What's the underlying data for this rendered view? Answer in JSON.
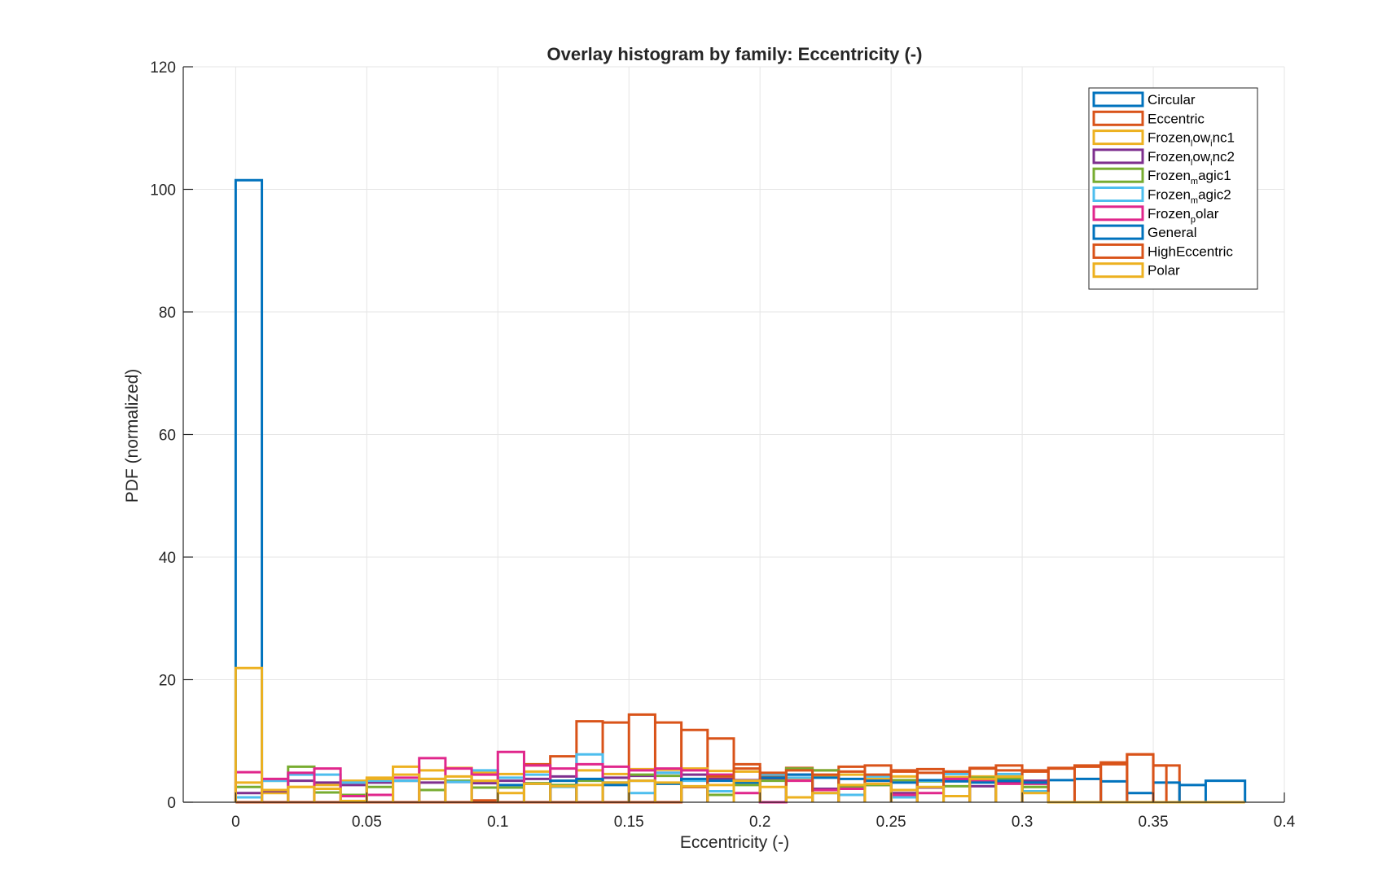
{
  "chart_data": {
    "type": "histogram",
    "title": "Overlay histogram by family: Eccentricity (-)",
    "xlabel": "Eccentricity (-)",
    "ylabel": "PDF (normalized)",
    "xlim": [
      -0.02,
      0.4
    ],
    "ylim": [
      0,
      120
    ],
    "xticks": [
      0,
      0.05,
      0.1,
      0.15,
      0.2,
      0.25,
      0.3,
      0.35,
      0.4
    ],
    "xtick_labels": [
      "0",
      "0.05",
      "0.1",
      "0.15",
      "0.2",
      "0.25",
      "0.3",
      "0.35",
      "0.4"
    ],
    "yticks": [
      0,
      20,
      40,
      60,
      80,
      100,
      120
    ],
    "ytick_labels": [
      "0",
      "20",
      "40",
      "60",
      "80",
      "100",
      "120"
    ],
    "grid": true,
    "legend_position": "top-right",
    "display_style": "stairs",
    "series": [
      {
        "name": "Circular",
        "color": "#0072BD",
        "edges": [
          0,
          0.01
        ],
        "values": [
          101.5
        ]
      },
      {
        "name": "Eccentric",
        "color": "#D95319",
        "edges": [
          0.0,
          0.09,
          0.1,
          0.11,
          0.12,
          0.13,
          0.14,
          0.15,
          0.16,
          0.17,
          0.18,
          0.19,
          0.2,
          0.21,
          0.22,
          0.23,
          0.24,
          0.25,
          0.26,
          0.27,
          0.28,
          0.29,
          0.3,
          0.31,
          0.32,
          0.33,
          0.34,
          0.35,
          0.36
        ],
        "values": [
          0,
          0.3,
          0,
          6.2,
          7.5,
          13.2,
          13,
          14.3,
          13,
          11.8,
          10.4,
          6.2,
          4.2,
          5.6,
          5.2,
          5.8,
          6,
          5,
          5.4,
          5,
          5.6,
          6,
          5.2,
          5.6,
          6,
          6.5,
          7.8,
          6
        ]
      },
      {
        "name": "Frozen_lowinc1",
        "color": "#EDB120",
        "edges": [
          0,
          0.01,
          0.02,
          0.03,
          0.04,
          0.05,
          0.06,
          0.07,
          0.08,
          0.09,
          0.1,
          0.11,
          0.12,
          0.13,
          0.14,
          0.15,
          0.16,
          0.17,
          0.18,
          0.19,
          0.2,
          0.21,
          0.22,
          0.23,
          0.24,
          0.25,
          0.26,
          0.27,
          0.28,
          0.29,
          0.3,
          0.31
        ],
        "values": [
          3.2,
          1.5,
          2.5,
          2.8,
          3.5,
          4,
          5.8,
          5.2,
          5.6,
          4.8,
          4.6,
          5,
          3.5,
          5.2,
          4.6,
          5.4,
          5.3,
          5.5,
          5.1,
          5,
          4,
          3.8,
          4.2,
          4.5,
          3.8,
          4.2,
          3.5,
          4.1,
          4.2,
          3.9,
          2.5
        ]
      },
      {
        "name": "Frozen_lowinc2",
        "color": "#7E2F8E",
        "edges": [
          0,
          0.01,
          0.02,
          0.03,
          0.04,
          0.05,
          0.06,
          0.07,
          0.08,
          0.09,
          0.1,
          0.11,
          0.12,
          0.13,
          0.14,
          0.15,
          0.16,
          0.17,
          0.18,
          0.19,
          0.2,
          0.21,
          0.22,
          0.23,
          0.24,
          0.25,
          0.26,
          0.27,
          0.28,
          0.29,
          0.3,
          0.31
        ],
        "values": [
          1.5,
          1.8,
          3.5,
          3.2,
          2.8,
          3.2,
          3.5,
          3.2,
          3.3,
          3.1,
          3.5,
          3.8,
          4.2,
          3.6,
          4,
          4.3,
          4.8,
          4.5,
          3.8,
          3.6,
          3.9,
          4.5,
          2.2,
          2.5,
          2.8,
          1.5,
          2.4,
          3.5,
          2.6,
          3.2,
          3.5
        ]
      },
      {
        "name": "Frozen_magic1",
        "color": "#77AC30",
        "edges": [
          0,
          0.01,
          0.02,
          0.03,
          0.04,
          0.05,
          0.06,
          0.07,
          0.08,
          0.09,
          0.1,
          0.11,
          0.12,
          0.13,
          0.14,
          0.15,
          0.16,
          0.17,
          0.18,
          0.19,
          0.2,
          0.21,
          0.22,
          0.23,
          0.24,
          0.25,
          0.26,
          0.27,
          0.28,
          0.29,
          0.3,
          0.31
        ],
        "values": [
          2.5,
          3.5,
          5.8,
          1.6,
          1.2,
          2.5,
          3.5,
          2,
          3.5,
          2.4,
          2.4,
          3.1,
          2.8,
          3.5,
          3.2,
          4.5,
          4.3,
          2.5,
          1.2,
          2.8,
          3.5,
          5.5,
          5.2,
          2.4,
          2.8,
          3.6,
          3.4,
          2.6,
          4,
          3.8,
          2.5
        ]
      },
      {
        "name": "Frozen_magic2",
        "color": "#4DBEEE",
        "edges": [
          0,
          0.01,
          0.02,
          0.03,
          0.04,
          0.05,
          0.06,
          0.07,
          0.08,
          0.09,
          0.1,
          0.11,
          0.12,
          0.13,
          0.14,
          0.15,
          0.16,
          0.17,
          0.18,
          0.19,
          0.2,
          0.21,
          0.22,
          0.23,
          0.24,
          0.25,
          0.26,
          0.27,
          0.28,
          0.29,
          0.3,
          0.31
        ],
        "values": [
          0.8,
          3.5,
          4.5,
          4.5,
          3.2,
          3.5,
          3.5,
          3.8,
          3.3,
          5.2,
          4,
          4.5,
          2.5,
          7.8,
          3.2,
          1.5,
          4.8,
          3.5,
          1.8,
          3.5,
          4.5,
          4,
          1.5,
          1.2,
          4.2,
          0.8,
          3.5,
          4.6,
          3.5,
          4.6,
          1.8
        ]
      },
      {
        "name": "Frozen_polar",
        "color": "#E0278C",
        "edges": [
          0,
          0.01,
          0.02,
          0.03,
          0.04,
          0.05,
          0.06,
          0.07,
          0.08,
          0.09,
          0.1,
          0.11,
          0.12,
          0.13,
          0.14,
          0.15,
          0.16,
          0.17,
          0.18,
          0.19,
          0.2,
          0.21,
          0.22,
          0.23,
          0.24,
          0.25,
          0.26,
          0.27,
          0.28,
          0.29,
          0.3,
          0.31
        ],
        "values": [
          4.9,
          3.8,
          4.8,
          5.5,
          1,
          1.2,
          4,
          7.2,
          5.5,
          4.5,
          8.2,
          6,
          5.5,
          6.2,
          5.8,
          5.2,
          5.5,
          5.2,
          4.5,
          1.5,
          0,
          3.5,
          2,
          2.2,
          3.5,
          1.2,
          1.5,
          3.8,
          3.5,
          3,
          3
        ]
      },
      {
        "name": "General",
        "color": "#0072BD",
        "edges": [
          0.0,
          0.1,
          0.11,
          0.12,
          0.13,
          0.14,
          0.15,
          0.16,
          0.17,
          0.18,
          0.19,
          0.2,
          0.21,
          0.22,
          0.23,
          0.24,
          0.25,
          0.26,
          0.27,
          0.28,
          0.29,
          0.3,
          0.31,
          0.32,
          0.33,
          0.34,
          0.35,
          0.36,
          0.37,
          0.385
        ],
        "values": [
          0,
          2.8,
          3,
          3.5,
          3.8,
          2.8,
          3.5,
          3,
          3.8,
          3.5,
          3.2,
          4,
          4.5,
          4,
          3.8,
          3.5,
          3.2,
          3.6,
          3.4,
          3.2,
          3.5,
          3.2,
          3.6,
          3.8,
          3.4,
          1.5,
          3.2,
          2.8,
          3.5
        ]
      },
      {
        "name": "HighEccentric",
        "color": "#D95319",
        "edges": [
          0.0,
          0.17,
          0.18,
          0.19,
          0.2,
          0.21,
          0.22,
          0.23,
          0.24,
          0.25,
          0.26,
          0.27,
          0.28,
          0.29,
          0.3,
          0.31,
          0.32,
          0.33,
          0.34,
          0.35,
          0.355
        ],
        "values": [
          0,
          2.5,
          4.2,
          5.5,
          4.8,
          5.2,
          4.5,
          5,
          4.5,
          5.2,
          4.8,
          5,
          5.5,
          5.2,
          5,
          5.5,
          5.8,
          6.2,
          7.8,
          6
        ]
      },
      {
        "name": "Polar",
        "color": "#EDB120",
        "edges": [
          0,
          0.01,
          0.02,
          0.03,
          0.04,
          0.05,
          0.06,
          0.07,
          0.08,
          0.09,
          0.1,
          0.11,
          0.12,
          0.13,
          0.14,
          0.15,
          0.16,
          0.17,
          0.18,
          0.19,
          0.2,
          0.21,
          0.22,
          0.23,
          0.24,
          0.25,
          0.26,
          0.27,
          0.28,
          0.29,
          0.3,
          0.31,
          0.385
        ],
        "values": [
          21.9,
          2,
          2.5,
          2.2,
          0.2,
          3.8,
          4.5,
          3.8,
          4.2,
          3.5,
          1.5,
          3,
          2.6,
          2.8,
          3.2,
          3.5,
          3.2,
          2.6,
          2.8,
          3.5,
          2.5,
          0.8,
          1.5,
          2.8,
          3,
          2,
          2.5,
          1,
          3.8,
          4.2,
          1.5,
          0
        ]
      }
    ]
  },
  "legend": {
    "entries": [
      {
        "main": "Circular",
        "sub": "",
        "tail": "",
        "color": "#0072BD"
      },
      {
        "main": "Eccentric",
        "sub": "",
        "tail": "",
        "color": "#D95319"
      },
      {
        "main": "Frozen",
        "sub": "l",
        "tail": "ow",
        "sub2": "i",
        "tail2": "nc1",
        "color": "#EDB120"
      },
      {
        "main": "Frozen",
        "sub": "l",
        "tail": "ow",
        "sub2": "i",
        "tail2": "nc2",
        "color": "#7E2F8E"
      },
      {
        "main": "Frozen",
        "sub": "m",
        "tail": "agic1",
        "color": "#77AC30"
      },
      {
        "main": "Frozen",
        "sub": "m",
        "tail": "agic2",
        "color": "#4DBEEE"
      },
      {
        "main": "Frozen",
        "sub": "p",
        "tail": "olar",
        "color": "#E0278C"
      },
      {
        "main": "General",
        "sub": "",
        "tail": "",
        "color": "#0072BD"
      },
      {
        "main": "HighEccentric",
        "sub": "",
        "tail": "",
        "color": "#D95319"
      },
      {
        "main": "Polar",
        "sub": "",
        "tail": "",
        "color": "#EDB120"
      }
    ]
  }
}
